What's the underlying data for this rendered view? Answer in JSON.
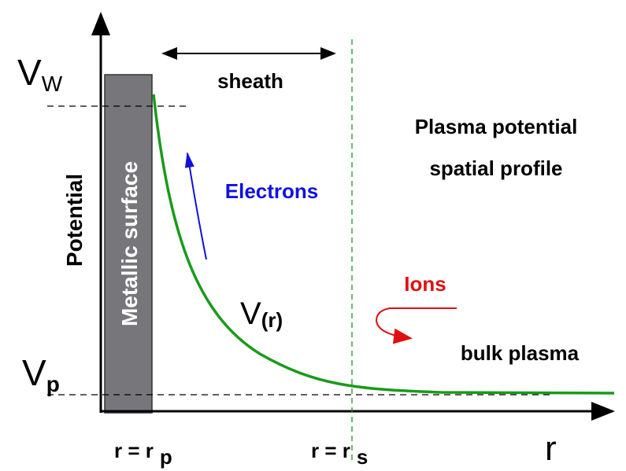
{
  "axes": {
    "y_label": "Potential",
    "x_label": "r"
  },
  "wall_potential": {
    "symbol": "V",
    "subscript": "W"
  },
  "plasma_potential_level": {
    "symbol": "V",
    "subscript": "p"
  },
  "surface": "Metallic surface",
  "sheath": "sheath",
  "title": [
    "Plasma potential",
    "spatial profile"
  ],
  "electrons": "Electrons",
  "ions": "Ions",
  "curve_label": {
    "symbol": "V",
    "subscript": "(r)"
  },
  "bulk": "bulk plasma",
  "x_marks": [
    {
      "text": "r = r",
      "subscript": "p"
    },
    {
      "text": "r = r",
      "subscript": "s"
    }
  ]
}
